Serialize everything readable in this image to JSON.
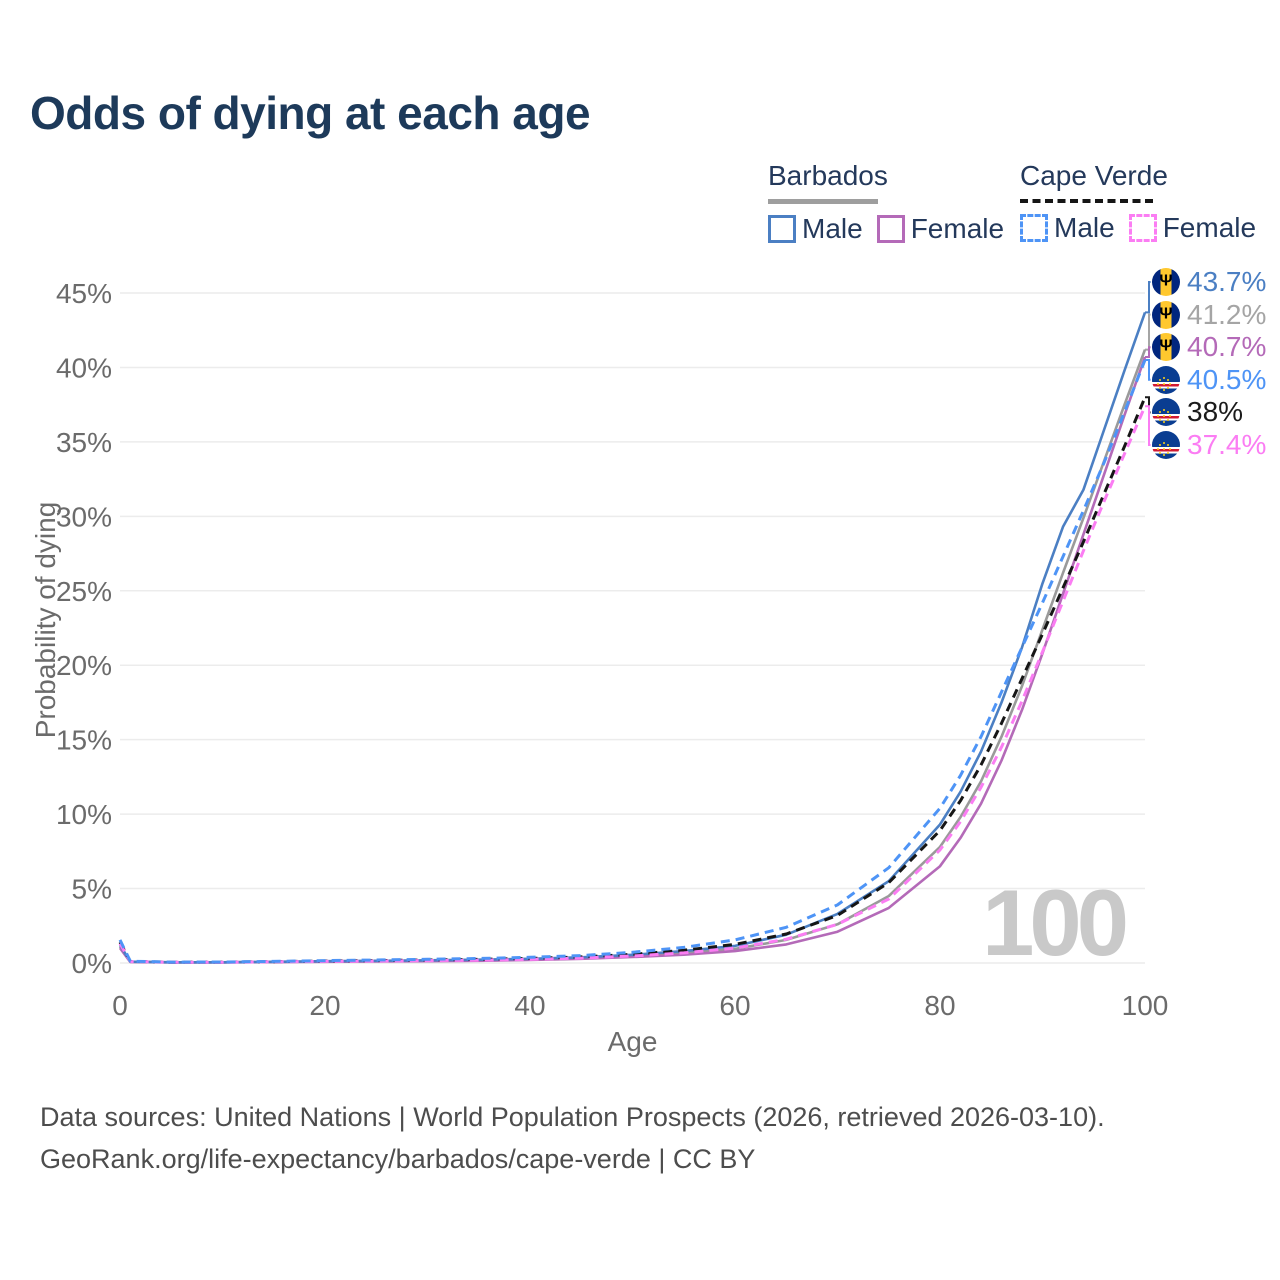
{
  "title": "Odds of dying at each age",
  "legend": {
    "groups": [
      {
        "name": "Barbados",
        "line_style": "solid",
        "rule_color": "#9e9e9e",
        "items": [
          {
            "label": "Male",
            "color": "#4b7fc3"
          },
          {
            "label": "Female",
            "color": "#b46ab8"
          }
        ]
      },
      {
        "name": "Cape Verde",
        "line_style": "dashed",
        "rule_color": "#161616",
        "items": [
          {
            "label": "Male",
            "color": "#4e94f6"
          },
          {
            "label": "Female",
            "color": "#fb7df3"
          }
        ]
      }
    ]
  },
  "icons": {
    "barbados_trident": "Ψ"
  },
  "chart_data": {
    "type": "line",
    "xlabel": "Age",
    "ylabel": "Probability of dying",
    "xlim": [
      0,
      100
    ],
    "ylim": [
      0,
      46
    ],
    "grid": true,
    "watermark": "100",
    "xticks": [
      0,
      20,
      40,
      60,
      80,
      100
    ],
    "ytick_values": [
      0,
      5,
      10,
      15,
      20,
      25,
      30,
      35,
      40,
      45
    ],
    "ytick_labels": [
      "0%",
      "5%",
      "10%",
      "15%",
      "20%",
      "25%",
      "30%",
      "35%",
      "40%",
      "45%"
    ],
    "ages": [
      0,
      1,
      5,
      10,
      15,
      20,
      25,
      30,
      35,
      40,
      45,
      50,
      55,
      60,
      65,
      70,
      75,
      80,
      82,
      84,
      86,
      88,
      90,
      92,
      94,
      96,
      98,
      100
    ],
    "series": [
      {
        "id": "barbados-total",
        "name": "Barbados",
        "country": "Barbados",
        "sex": "both",
        "color": "#9a9a9a",
        "dash": false,
        "values": [
          1.1,
          0.08,
          0.05,
          0.05,
          0.07,
          0.1,
          0.12,
          0.15,
          0.18,
          0.24,
          0.33,
          0.47,
          0.67,
          0.95,
          1.55,
          2.6,
          4.5,
          7.8,
          9.8,
          12.2,
          15.2,
          18.6,
          22.4,
          26.2,
          29.9,
          33.7,
          37.5,
          41.2
        ]
      },
      {
        "id": "barbados-female",
        "name": "Barbados Female",
        "country": "Barbados",
        "sex": "female",
        "color": "#b46ab8",
        "dash": false,
        "values": [
          1.0,
          0.07,
          0.04,
          0.04,
          0.06,
          0.08,
          0.1,
          0.12,
          0.15,
          0.2,
          0.28,
          0.4,
          0.56,
          0.8,
          1.25,
          2.1,
          3.7,
          6.5,
          8.4,
          10.7,
          13.6,
          17.0,
          20.8,
          24.8,
          28.8,
          32.8,
          36.8,
          40.7
        ]
      },
      {
        "id": "barbados-male",
        "name": "Barbados Male",
        "country": "Barbados",
        "sex": "male",
        "color": "#4b7fc3",
        "dash": false,
        "values": [
          1.2,
          0.09,
          0.05,
          0.05,
          0.08,
          0.12,
          0.15,
          0.18,
          0.22,
          0.28,
          0.38,
          0.55,
          0.8,
          1.15,
          1.9,
          3.3,
          5.5,
          9.3,
          11.5,
          14.2,
          17.5,
          21.2,
          25.5,
          29.3,
          31.8,
          35.8,
          39.8,
          43.7
        ]
      },
      {
        "id": "cape-verde-total",
        "name": "Cape Verde",
        "country": "Cape Verde",
        "sex": "both",
        "color": "#161616",
        "dash": true,
        "values": [
          1.4,
          0.11,
          0.055,
          0.06,
          0.09,
          0.13,
          0.16,
          0.2,
          0.24,
          0.3,
          0.41,
          0.58,
          0.85,
          1.25,
          1.95,
          3.2,
          5.4,
          8.9,
          10.9,
          13.3,
          16.1,
          19.1,
          22.1,
          25.2,
          28.3,
          31.5,
          34.7,
          38.0
        ]
      },
      {
        "id": "cape-verde-female",
        "name": "Cape Verde Female",
        "country": "Cape Verde",
        "sex": "female",
        "color": "#fb7df3",
        "dash": true,
        "values": [
          1.3,
          0.1,
          0.05,
          0.05,
          0.08,
          0.11,
          0.13,
          0.16,
          0.19,
          0.24,
          0.33,
          0.47,
          0.68,
          1.0,
          1.6,
          2.6,
          4.3,
          7.6,
          9.5,
          11.8,
          14.5,
          17.6,
          20.9,
          24.3,
          27.7,
          31.0,
          34.2,
          37.4
        ]
      },
      {
        "id": "cape-verde-male",
        "name": "Cape Verde Male",
        "country": "Cape Verde",
        "sex": "male",
        "color": "#4e94f6",
        "dash": true,
        "values": [
          1.55,
          0.12,
          0.06,
          0.07,
          0.11,
          0.16,
          0.2,
          0.25,
          0.3,
          0.38,
          0.5,
          0.72,
          1.05,
          1.55,
          2.4,
          3.9,
          6.4,
          10.4,
          12.6,
          15.2,
          18.2,
          21.2,
          24.2,
          27.3,
          30.4,
          33.6,
          37.0,
          40.5
        ]
      }
    ],
    "end_labels": [
      {
        "series": "barbados-male",
        "text": "43.7%",
        "color": "#4b7fc3",
        "flag": "barbados"
      },
      {
        "series": "barbados-total",
        "text": "41.2%",
        "color": "#a5a5a5",
        "flag": "barbados"
      },
      {
        "series": "barbados-female",
        "text": "40.7%",
        "color": "#b46ab8",
        "flag": "barbados"
      },
      {
        "series": "cape-verde-male",
        "text": "40.5%",
        "color": "#4e94f6",
        "flag": "cape-verde"
      },
      {
        "series": "cape-verde-total",
        "text": "38%",
        "color": "#1a1a1a",
        "flag": "cape-verde"
      },
      {
        "series": "cape-verde-female",
        "text": "37.4%",
        "color": "#fb7df3",
        "flag": "cape-verde"
      }
    ]
  },
  "footer": {
    "line1": "Data sources: United Nations | World Population Prospects (2026, retrieved 2026-03-10).",
    "line2": "GeoRank.org/life-expectancy/barbados/cape-verde | CC BY"
  }
}
